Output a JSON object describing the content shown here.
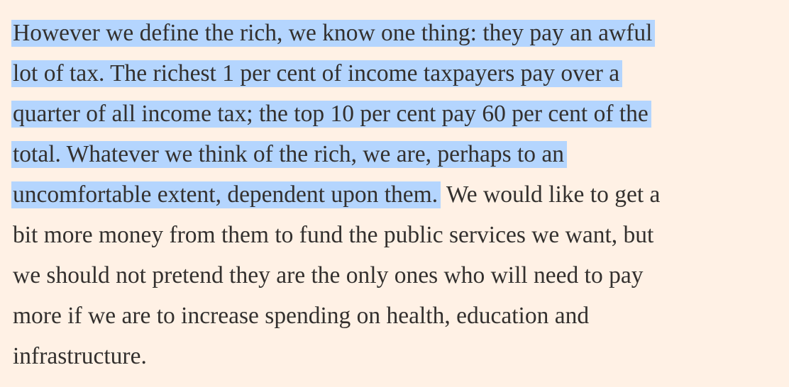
{
  "paragraph": {
    "lines": [
      {
        "selected": "However we define the rich, we know one thing: they pay an awful"
      },
      {
        "selected": "lot of tax. The richest 1 per cent of income taxpayers pay over a"
      },
      {
        "selected": "quarter of all income tax; the top 10 per cent pay 60 per cent of the"
      },
      {
        "selected": "total. Whatever we think of the rich, we are, perhaps to an"
      },
      {
        "selected": "uncomfortable extent, dependent upon them.",
        "plain": " We would like to get a"
      },
      {
        "plain": "bit more money from them to fund the public services we want, but"
      },
      {
        "plain": "we should not pretend they are the only ones who will need to pay"
      },
      {
        "plain": "more if we are to increase spending on health, education and"
      },
      {
        "plain": "infrastructure."
      }
    ]
  }
}
